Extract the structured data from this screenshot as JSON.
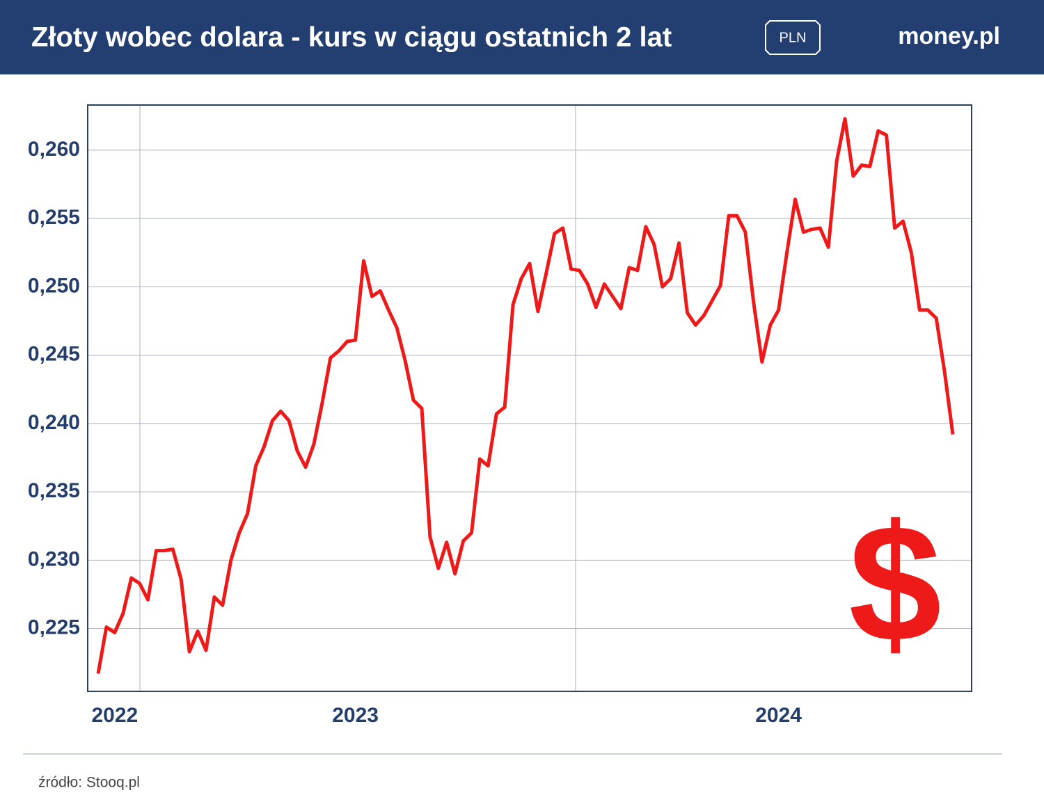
{
  "chart_data": {
    "type": "line",
    "title": "Złoty wobec dolara - kurs w ciągu ostatnich 2 lat",
    "badge": "PLN",
    "logo": "money.pl",
    "source": "źródło: Stooq.pl",
    "annotation": "$",
    "color": "#ee1a1a",
    "grid": true,
    "ylim": [
      0.2204,
      0.2633
    ],
    "yticks": [
      {
        "value": 0.225,
        "label": "0,225"
      },
      {
        "value": 0.23,
        "label": "0,230"
      },
      {
        "value": 0.235,
        "label": "0,235"
      },
      {
        "value": 0.24,
        "label": "0,240"
      },
      {
        "value": 0.245,
        "label": "0,245"
      },
      {
        "value": 0.25,
        "label": "0,250"
      },
      {
        "value": 0.255,
        "label": "0,255"
      },
      {
        "value": 0.26,
        "label": "0,260"
      }
    ],
    "categories": [
      null,
      null,
      "2022",
      null,
      null,
      null,
      null,
      null,
      null,
      null,
      null,
      null,
      null,
      null,
      null,
      null,
      null,
      null,
      null,
      null,
      null,
      null,
      null,
      null,
      null,
      null,
      null,
      null,
      null,
      null,
      null,
      "2023",
      null,
      null,
      null,
      null,
      null,
      null,
      null,
      null,
      null,
      null,
      null,
      null,
      null,
      null,
      null,
      null,
      null,
      null,
      null,
      null,
      null,
      null,
      null,
      null,
      null,
      null,
      null,
      null,
      null,
      null,
      null,
      null,
      null,
      null,
      null,
      null,
      null,
      null,
      null,
      null,
      null,
      null,
      null,
      null,
      null,
      null,
      null,
      null,
      null,
      null,
      "2024",
      null,
      null,
      null,
      null,
      null,
      null,
      null,
      null,
      null,
      null,
      null,
      null,
      null,
      null,
      null,
      null,
      null,
      null,
      null,
      null,
      null
    ],
    "values": [
      0.2217,
      0.2251,
      0.2247,
      0.2261,
      0.2287,
      0.2283,
      0.2271,
      0.2307,
      0.2307,
      0.2308,
      0.2286,
      0.2233,
      0.2248,
      0.2234,
      0.2273,
      0.2267,
      0.23,
      0.232,
      0.2334,
      0.2369,
      0.2383,
      0.2402,
      0.2409,
      0.2402,
      0.238,
      0.2368,
      0.2385,
      0.2415,
      0.2448,
      0.2453,
      0.246,
      0.2461,
      0.2519,
      0.2493,
      0.2497,
      0.2483,
      0.247,
      0.2446,
      0.2417,
      0.2411,
      0.2317,
      0.2294,
      0.2313,
      0.229,
      0.2314,
      0.232,
      0.2374,
      0.2369,
      0.2407,
      0.2412,
      0.2487,
      0.2506,
      0.2517,
      0.2482,
      0.251,
      0.2539,
      0.2543,
      0.2513,
      0.2512,
      0.2502,
      0.2485,
      0.2502,
      0.2493,
      0.2484,
      0.2514,
      0.2512,
      0.2544,
      0.2531,
      0.25,
      0.2506,
      0.2532,
      0.2481,
      0.2472,
      0.2479,
      0.249,
      0.2501,
      0.2552,
      0.2552,
      0.254,
      0.2488,
      0.2445,
      0.2472,
      0.2483,
      0.2525,
      0.2564,
      0.254,
      0.2542,
      0.2543,
      0.2529,
      0.2592,
      0.2623,
      0.2581,
      0.2589,
      0.2588,
      0.2614,
      0.2611,
      0.2543,
      0.2548,
      0.2525,
      0.2483,
      0.2483,
      0.2477,
      0.2438,
      0.2392
    ]
  }
}
